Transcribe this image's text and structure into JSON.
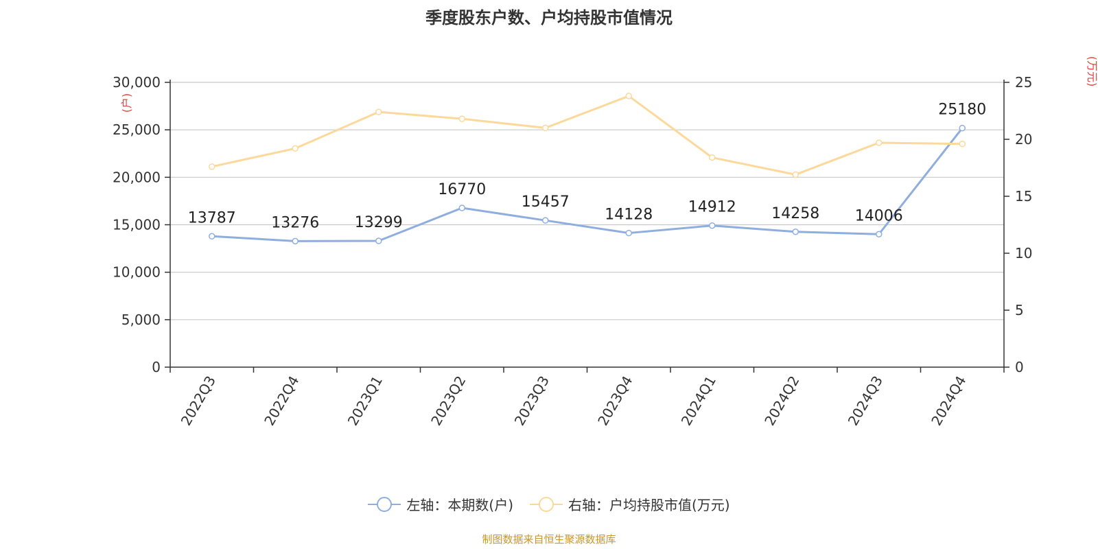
{
  "title": "季度股东户数、户均持股市值情况",
  "source": "制图数据来自恒生聚源数据库",
  "colors": {
    "series1": "#8eaee0",
    "series2": "#fcd99a",
    "axis_unit": "#e8413c",
    "text": "#333333",
    "grid": "#c8c8c8"
  },
  "chart_data": {
    "type": "line",
    "title": "季度股东户数、户均持股市值情况",
    "categories": [
      "2022Q3",
      "2022Q4",
      "2023Q1",
      "2023Q2",
      "2023Q3",
      "2023Q4",
      "2024Q1",
      "2024Q2",
      "2024Q3",
      "2024Q4"
    ],
    "left_axis": {
      "unit": "(户)",
      "ylim": [
        0,
        30000
      ],
      "ticks": [
        "0",
        "5,000",
        "10,000",
        "15,000",
        "20,000",
        "25,000",
        "30,000"
      ]
    },
    "right_axis": {
      "unit": "(万元)",
      "ylim": [
        0,
        25
      ],
      "ticks": [
        "0",
        "5",
        "10",
        "15",
        "20",
        "25"
      ]
    },
    "series": [
      {
        "name": "左轴：本期数(户)",
        "axis": "left",
        "values": [
          13787,
          13276,
          13299,
          16770,
          15457,
          14128,
          14912,
          14258,
          14006,
          25180
        ],
        "labels": [
          "13787",
          "13276",
          "13299",
          "16770",
          "15457",
          "14128",
          "14912",
          "14258",
          "14006",
          "25180"
        ]
      },
      {
        "name": "右轴：户均持股市值(万元)",
        "axis": "right",
        "values": [
          17.6,
          19.2,
          22.4,
          21.8,
          21.0,
          23.8,
          18.4,
          16.9,
          19.7,
          19.6
        ]
      }
    ],
    "grid": true,
    "legend": "bottom-center"
  }
}
